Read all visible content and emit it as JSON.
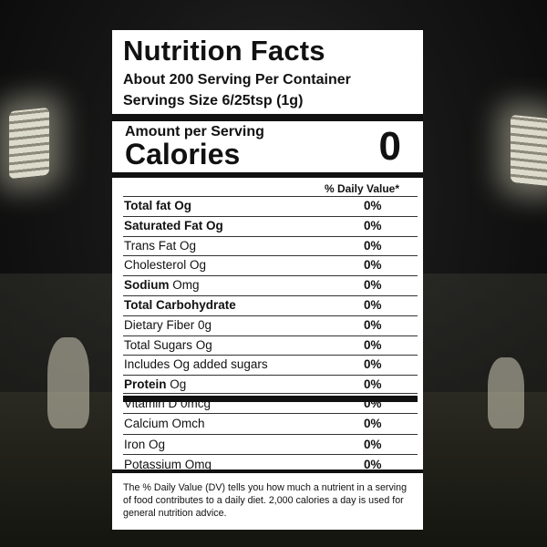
{
  "label": {
    "title": "Nutrition Facts",
    "servings_per_container": "About 200 Serving Per Container",
    "serving_size": "Servings Size 6/25tsp (1g)",
    "amount_per_serving": "Amount per Serving",
    "calories_label": "Calories",
    "calories_value": "0",
    "dv_header": "% Daily Value*",
    "nutrients": [
      {
        "name": "Total fat",
        "amount": "Og",
        "dv": "0%",
        "bold": true
      },
      {
        "name": "Saturated Fat",
        "amount": "Og",
        "dv": "0%",
        "bold": true
      },
      {
        "name": "Trans Fat Og",
        "amount": "",
        "dv": "0%",
        "bold": false
      },
      {
        "name": "Cholesterol Og",
        "amount": "",
        "dv": "0%",
        "bold": false
      },
      {
        "name": "Sodium",
        "amount": "Omg",
        "dv": "0%",
        "bold": "name"
      },
      {
        "name": "Total Carbohydrate",
        "amount": "",
        "dv": "0%",
        "bold": true
      },
      {
        "name": "Dietary Fiber 0g",
        "amount": "",
        "dv": "0%",
        "bold": false
      },
      {
        "name": "Total Sugars Og",
        "amount": "",
        "dv": "0%",
        "bold": false
      },
      {
        "name": "Includes Og added sugars",
        "amount": "",
        "dv": "0%",
        "bold": false
      },
      {
        "name": "Protein",
        "amount": "Og",
        "dv": "0%",
        "bold": "name"
      }
    ],
    "vitamins": [
      {
        "name": "Vitamin D 0mcg",
        "dv": "0%"
      },
      {
        "name": "Calcium Omch",
        "dv": "0%"
      },
      {
        "name": "Iron Og",
        "dv": "0%"
      },
      {
        "name": "Potassium Omg",
        "dv": "0%"
      }
    ],
    "footnote": "The % Daily Value (DV) tells you how much a nutrient in a serving of food contributes to a daily diet. 2,000 calories a day is used for general nutrition advice."
  }
}
